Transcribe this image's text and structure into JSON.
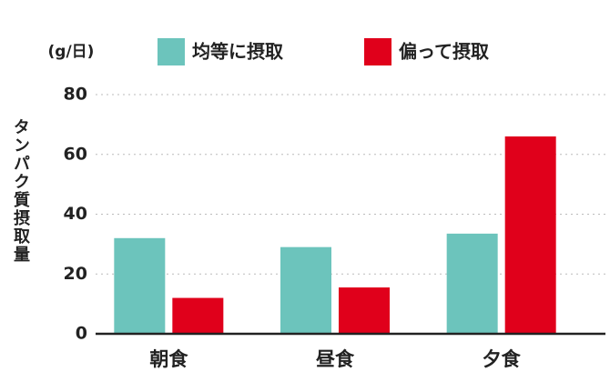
{
  "chart_data": {
    "type": "bar",
    "unit": "(g/日)",
    "y_label": "タンパク質摂取量",
    "categories": [
      "朝食",
      "昼食",
      "夕食"
    ],
    "series": [
      {
        "name": "均等に摂取",
        "color": "#6cc4bc",
        "values": [
          32,
          29,
          33.5
        ]
      },
      {
        "name": "偏って摂取",
        "color": "#e0001b",
        "values": [
          12,
          15.5,
          66
        ]
      }
    ],
    "ylim": [
      0,
      80
    ],
    "yticks": [
      0,
      20,
      40,
      60,
      80
    ],
    "grid": true
  }
}
